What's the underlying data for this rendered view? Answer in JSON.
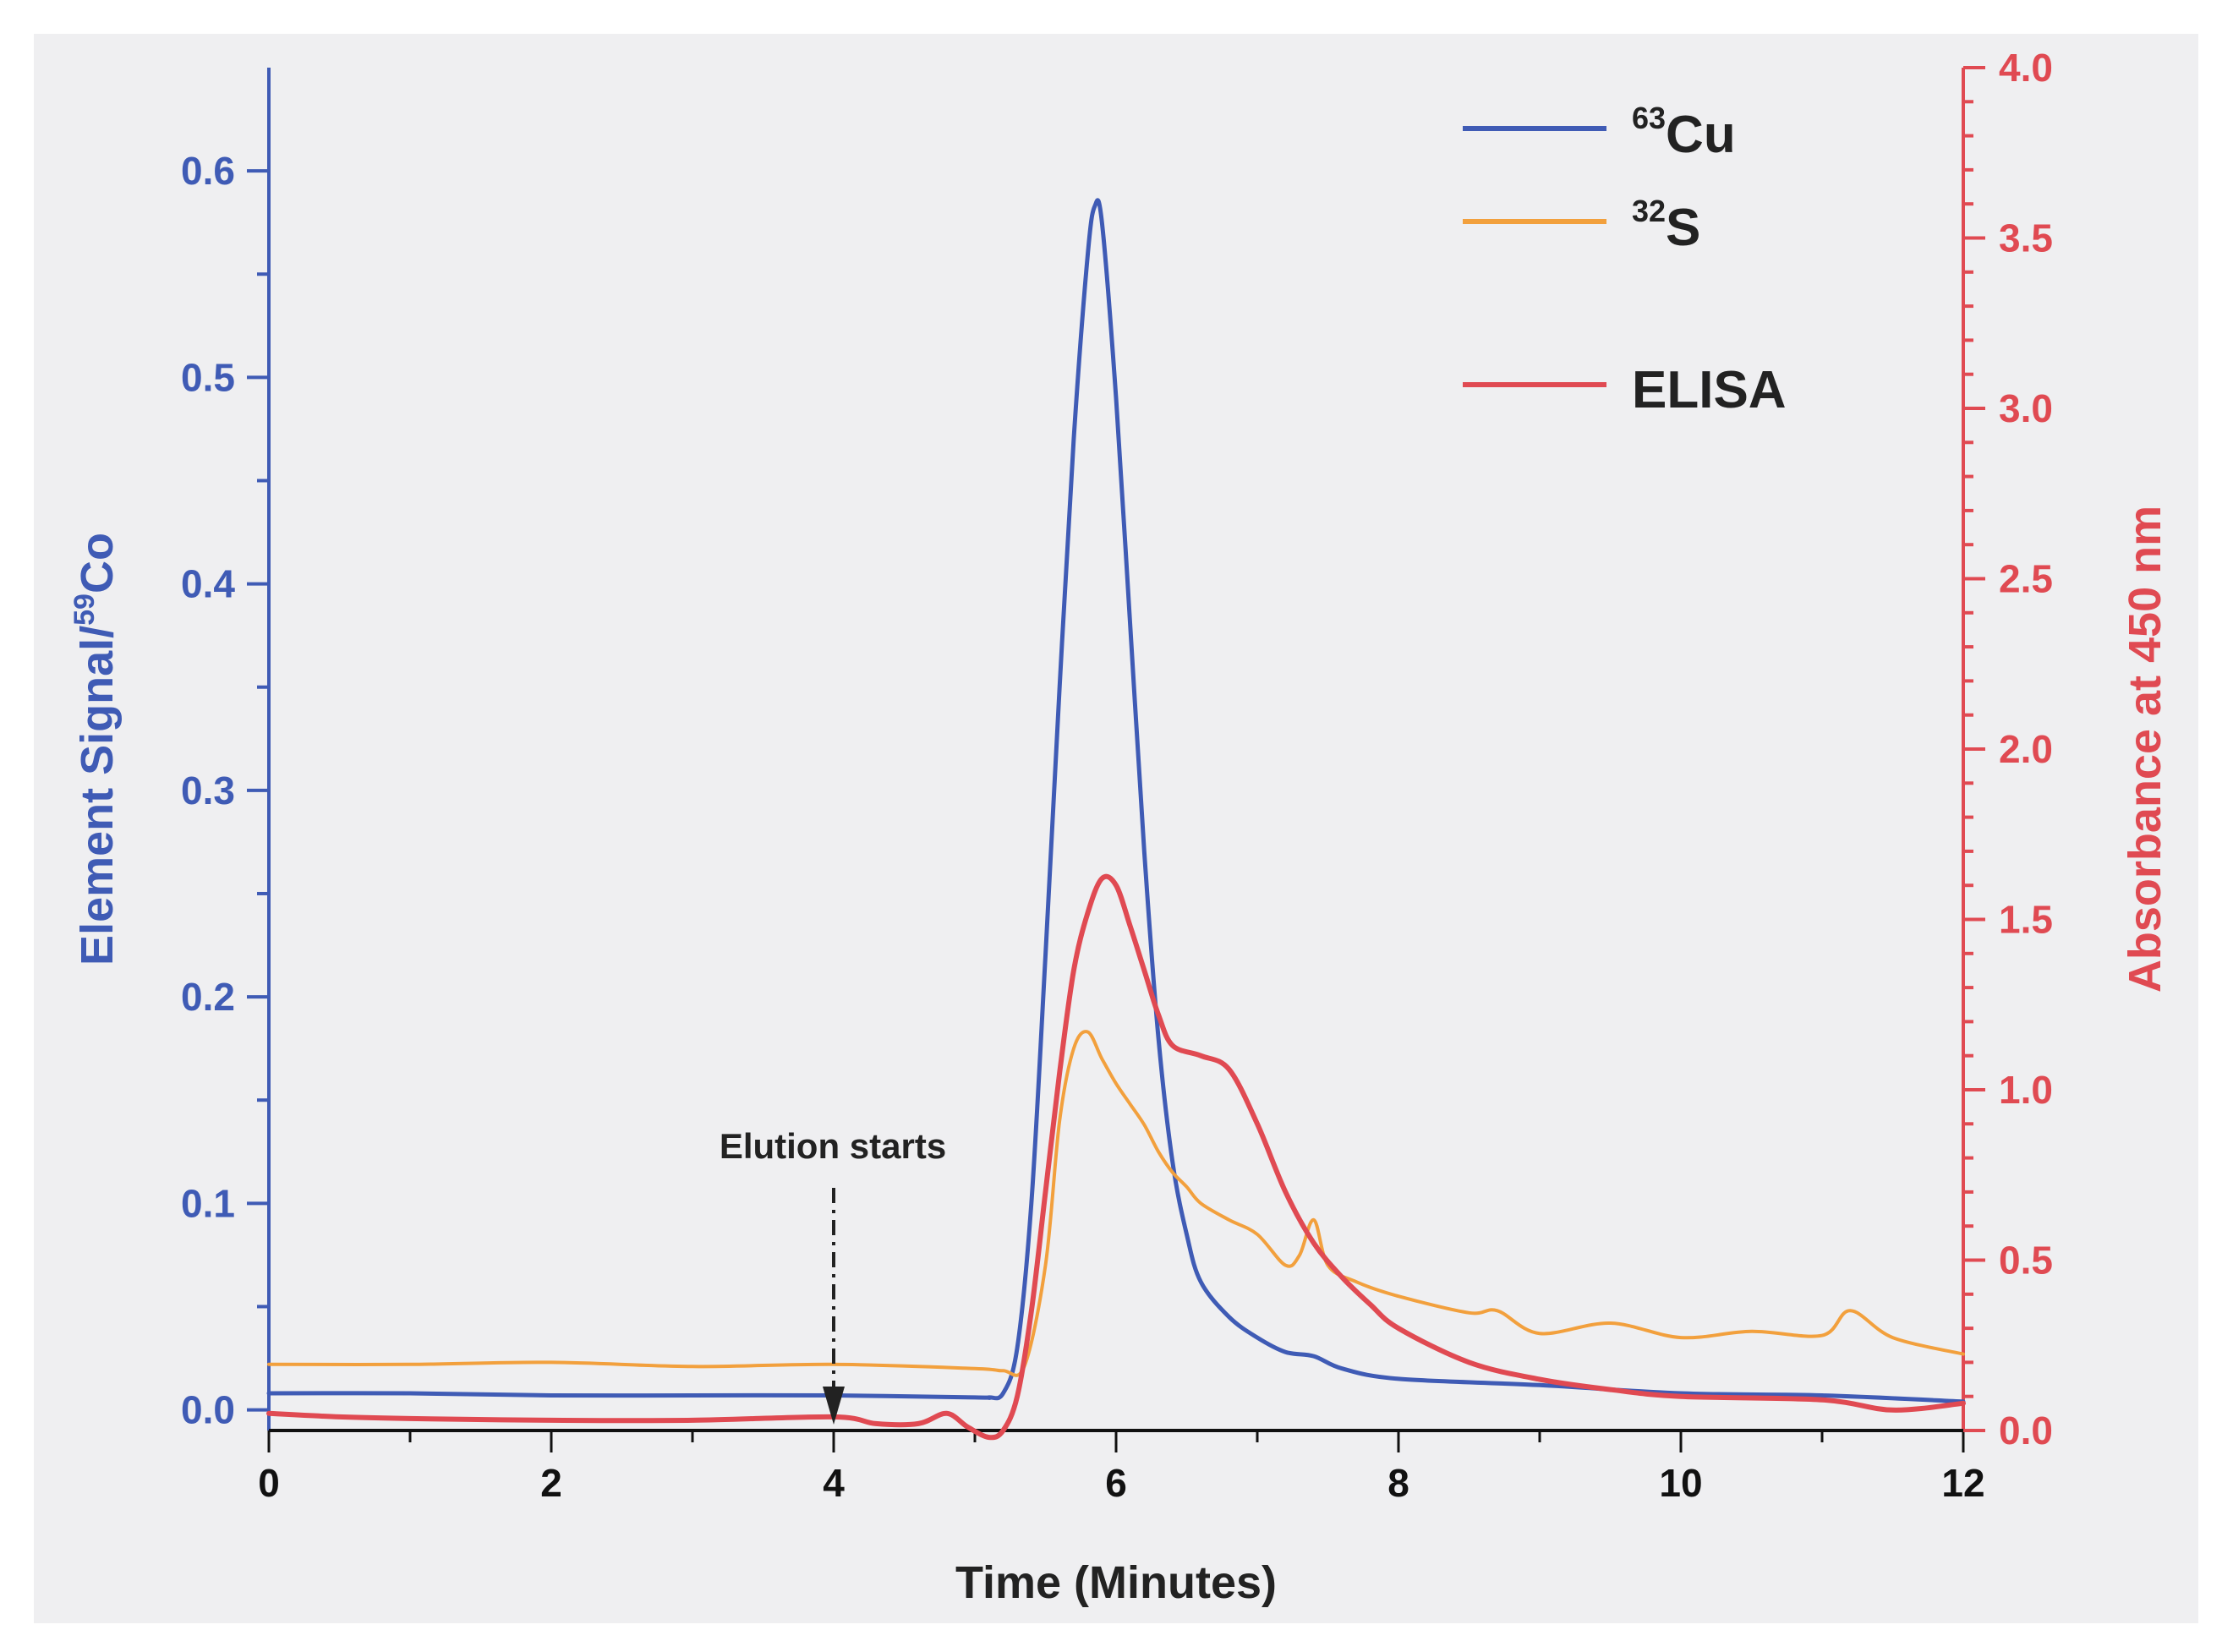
{
  "chart_data": {
    "type": "line",
    "xlabel": "Time (Minutes)",
    "ylabel_left": {
      "prefix": "Element Signal/",
      "sup": "59",
      "suffix": "Co"
    },
    "ylabel_right": "Absorbance at 450 nm",
    "xlim": [
      0,
      12
    ],
    "ylim_left": [
      -0.01,
      0.65
    ],
    "ylim_right": [
      0,
      4.0
    ],
    "x_ticks": [
      "0",
      "2",
      "4",
      "6",
      "8",
      "10",
      "12"
    ],
    "y_left_ticks": [
      "0.0",
      "0.1",
      "0.2",
      "0.3",
      "0.4",
      "0.5",
      "0.6"
    ],
    "y_right_ticks": [
      "0.0",
      "0.5",
      "1.0",
      "1.5",
      "2.0",
      "2.5",
      "3.0",
      "3.5",
      "4.0"
    ],
    "legend_position": "top-right",
    "colors": {
      "cu": "#3f5bb5",
      "s": "#f2a03d",
      "elisa": "#e04a52",
      "left_axis": "#3f5bb5",
      "right_axis": "#e04a52"
    },
    "series": [
      {
        "key": "cu",
        "name_sup": "63",
        "name_main": "Cu",
        "axis": "left",
        "x": [
          0,
          1,
          2,
          3,
          4,
          5,
          5.1,
          5.2,
          5.3,
          5.4,
          5.5,
          5.6,
          5.7,
          5.8,
          5.85,
          5.9,
          6.0,
          6.1,
          6.2,
          6.3,
          6.4,
          6.5,
          6.6,
          6.8,
          7.0,
          7.2,
          7.4,
          7.6,
          8,
          9,
          10,
          11,
          12
        ],
        "y": [
          0.008,
          0.008,
          0.007,
          0.007,
          0.007,
          0.006,
          0.006,
          0.008,
          0.03,
          0.1,
          0.22,
          0.35,
          0.47,
          0.56,
          0.583,
          0.575,
          0.49,
          0.38,
          0.27,
          0.18,
          0.12,
          0.085,
          0.062,
          0.045,
          0.035,
          0.028,
          0.026,
          0.02,
          0.015,
          0.012,
          0.008,
          0.007,
          0.004
        ]
      },
      {
        "key": "s",
        "name_sup": "32",
        "name_main": "S",
        "axis": "left",
        "x": [
          0,
          1,
          2,
          3,
          4,
          5,
          5.2,
          5.35,
          5.5,
          5.6,
          5.7,
          5.8,
          5.9,
          6.0,
          6.1,
          6.2,
          6.3,
          6.4,
          6.5,
          6.6,
          6.8,
          7.0,
          7.2,
          7.3,
          7.4,
          7.5,
          7.7,
          8,
          8.5,
          8.7,
          9,
          9.5,
          10,
          10.5,
          11,
          11.2,
          11.5,
          12
        ],
        "y": [
          0.022,
          0.022,
          0.023,
          0.021,
          0.022,
          0.02,
          0.019,
          0.021,
          0.07,
          0.14,
          0.175,
          0.183,
          0.17,
          0.158,
          0.148,
          0.138,
          0.125,
          0.115,
          0.108,
          0.1,
          0.092,
          0.085,
          0.07,
          0.075,
          0.092,
          0.07,
          0.062,
          0.055,
          0.047,
          0.048,
          0.037,
          0.042,
          0.035,
          0.038,
          0.036,
          0.048,
          0.035,
          0.027
        ]
      },
      {
        "key": "elisa",
        "name_main": "ELISA",
        "axis": "right",
        "x": [
          0,
          0.5,
          1,
          2,
          3,
          4,
          4.3,
          4.6,
          4.8,
          4.95,
          5.1,
          5.2,
          5.3,
          5.4,
          5.5,
          5.6,
          5.7,
          5.8,
          5.9,
          6.0,
          6.1,
          6.2,
          6.3,
          6.4,
          6.6,
          6.8,
          7.0,
          7.2,
          7.4,
          7.6,
          7.8,
          8,
          8.5,
          9,
          9.5,
          10,
          11,
          11.5,
          12
        ],
        "y": [
          0.05,
          0.04,
          0.035,
          0.03,
          0.03,
          0.04,
          0.02,
          0.02,
          0.05,
          0.01,
          -0.02,
          0.0,
          0.1,
          0.35,
          0.7,
          1.05,
          1.35,
          1.52,
          1.62,
          1.6,
          1.48,
          1.35,
          1.22,
          1.13,
          1.1,
          1.06,
          0.9,
          0.7,
          0.55,
          0.45,
          0.37,
          0.3,
          0.2,
          0.15,
          0.12,
          0.1,
          0.09,
          0.06,
          0.08
        ]
      }
    ],
    "annotations": [
      {
        "text": "Elution starts",
        "x": 4
      }
    ]
  }
}
